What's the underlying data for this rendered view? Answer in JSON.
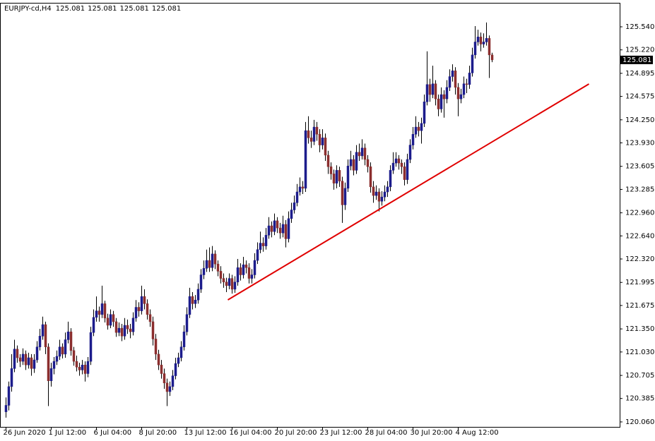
{
  "chart_data": {
    "type": "candlestick",
    "symbol": "EURJPY-cd,H4",
    "header_values": [
      125.081,
      125.081,
      125.081,
      125.081
    ],
    "last_price": 125.081,
    "up_color": "#1c1c8c",
    "down_color": "#8b2e2e",
    "wick_color": "#000000",
    "ylim": [
      119.991,
      125.863
    ],
    "yticks": [
      {
        "value": 125.54,
        "label": "125.540"
      },
      {
        "value": 125.22,
        "label": "125.220"
      },
      124.895,
      124.575,
      {
        "value": 124.25,
        "label": "124.250"
      },
      {
        "value": 123.93,
        "label": "123.930"
      },
      123.605,
      123.285,
      {
        "value": 122.96,
        "label": "122.960"
      },
      {
        "value": 122.64,
        "label": "122.640"
      },
      {
        "value": 122.32,
        "label": "122.320"
      },
      121.995,
      121.675,
      {
        "value": 121.35,
        "label": "121.350"
      },
      {
        "value": 121.03,
        "label": "121.030"
      },
      120.705,
      120.385,
      {
        "value": 120.06,
        "label": "120.060"
      }
    ],
    "x": [
      "26 Jun 2020",
      null,
      null,
      null,
      null,
      null,
      null,
      null,
      null,
      null,
      null,
      null,
      null,
      null,
      null,
      null,
      "1 Jul 12:00",
      null,
      null,
      null,
      null,
      null,
      null,
      null,
      null,
      null,
      null,
      null,
      null,
      null,
      null,
      null,
      "6 Jul 04:00",
      null,
      null,
      null,
      null,
      null,
      null,
      null,
      null,
      null,
      null,
      null,
      null,
      null,
      null,
      null,
      "8 Jul 20:00",
      null,
      null,
      null,
      null,
      null,
      null,
      null,
      null,
      null,
      null,
      null,
      null,
      null,
      null,
      null,
      "13 Jul 12:00",
      null,
      null,
      null,
      null,
      null,
      null,
      null,
      null,
      null,
      null,
      null,
      null,
      null,
      null,
      null,
      "16 Jul 04:00",
      null,
      null,
      null,
      null,
      null,
      null,
      null,
      null,
      null,
      null,
      null,
      null,
      null,
      null,
      null,
      "20 Jul 20:00",
      null,
      null,
      null,
      null,
      null,
      null,
      null,
      null,
      null,
      null,
      null,
      null,
      null,
      null,
      null,
      "23 Jul 12:00",
      null,
      null,
      null,
      null,
      null,
      null,
      null,
      null,
      null,
      null,
      null,
      null,
      null,
      null,
      null,
      "28 Jul 04:00",
      null,
      null,
      null,
      null,
      null,
      null,
      null,
      null,
      null,
      null,
      null,
      null,
      null,
      null,
      null,
      "30 Jul 20:00",
      null,
      null,
      null,
      null,
      null,
      null,
      null,
      null,
      null,
      null,
      null,
      null,
      null,
      null,
      null,
      "4 Aug 12:00",
      null,
      null,
      null,
      null,
      null,
      null,
      null,
      null,
      null,
      null,
      null,
      null
    ],
    "ohlc": [
      [
        120.2,
        120.4,
        120.12,
        120.29
      ],
      [
        120.29,
        120.62,
        120.22,
        120.55
      ],
      [
        120.55,
        121.0,
        120.48,
        120.8
      ],
      [
        120.8,
        121.2,
        120.75,
        121.07
      ],
      [
        121.07,
        121.12,
        120.88,
        120.95
      ],
      [
        120.95,
        121.0,
        120.82,
        120.9
      ],
      [
        120.9,
        121.08,
        120.85,
        121.0
      ],
      [
        121.0,
        121.05,
        120.78,
        120.85
      ],
      [
        120.85,
        121.02,
        120.8,
        120.95
      ],
      [
        120.95,
        121.0,
        120.7,
        120.8
      ],
      [
        120.8,
        121.0,
        120.74,
        120.92
      ],
      [
        120.92,
        121.18,
        120.88,
        121.1
      ],
      [
        121.1,
        121.35,
        121.05,
        121.25
      ],
      [
        121.25,
        121.52,
        121.2,
        121.41
      ],
      [
        121.41,
        121.45,
        121.0,
        121.1
      ],
      [
        121.1,
        121.15,
        120.28,
        120.63
      ],
      [
        120.63,
        120.88,
        120.55,
        120.8
      ],
      [
        120.8,
        120.96,
        120.72,
        120.9
      ],
      [
        120.9,
        121.05,
        120.85,
        120.97
      ],
      [
        120.97,
        121.2,
        120.92,
        121.1
      ],
      [
        121.1,
        121.15,
        120.94,
        121.0
      ],
      [
        121.0,
        121.3,
        120.95,
        121.2
      ],
      [
        121.2,
        121.45,
        121.15,
        121.31
      ],
      [
        121.31,
        121.36,
        120.98,
        121.05
      ],
      [
        121.05,
        121.1,
        120.84,
        120.9
      ],
      [
        120.9,
        120.98,
        120.76,
        120.82
      ],
      [
        120.82,
        120.88,
        120.7,
        120.78
      ],
      [
        120.78,
        120.92,
        120.72,
        120.85
      ],
      [
        120.85,
        120.9,
        120.62,
        120.73
      ],
      [
        120.73,
        120.96,
        120.68,
        120.9
      ],
      [
        120.9,
        121.38,
        120.85,
        121.3
      ],
      [
        121.3,
        121.62,
        121.25,
        121.51
      ],
      [
        121.51,
        121.8,
        121.45,
        121.6
      ],
      [
        121.6,
        121.66,
        121.45,
        121.55
      ],
      [
        121.55,
        121.95,
        121.5,
        121.7
      ],
      [
        121.7,
        121.74,
        121.44,
        121.5
      ],
      [
        121.5,
        121.56,
        121.34,
        121.4
      ],
      [
        121.4,
        121.62,
        121.36,
        121.55
      ],
      [
        121.55,
        121.6,
        121.38,
        121.45
      ],
      [
        121.45,
        121.5,
        121.24,
        121.3
      ],
      [
        121.3,
        121.44,
        121.25,
        121.36
      ],
      [
        121.36,
        121.42,
        121.18,
        121.25
      ],
      [
        121.25,
        121.5,
        121.2,
        121.4
      ],
      [
        121.4,
        121.48,
        121.28,
        121.35
      ],
      [
        121.35,
        121.42,
        121.22,
        121.31
      ],
      [
        121.31,
        121.58,
        121.26,
        121.5
      ],
      [
        121.5,
        121.75,
        121.45,
        121.65
      ],
      [
        121.65,
        121.72,
        121.52,
        121.6
      ],
      [
        121.6,
        121.95,
        121.55,
        121.8
      ],
      [
        121.8,
        121.9,
        121.62,
        121.7
      ],
      [
        121.7,
        121.76,
        121.48,
        121.55
      ],
      [
        121.55,
        121.62,
        121.38,
        121.45
      ],
      [
        121.45,
        121.52,
        121.12,
        121.21
      ],
      [
        121.21,
        121.28,
        120.92,
        121.0
      ],
      [
        121.0,
        121.06,
        120.78,
        120.85
      ],
      [
        120.85,
        120.92,
        120.66,
        120.73
      ],
      [
        120.73,
        120.8,
        120.52,
        120.6
      ],
      [
        120.6,
        120.66,
        120.28,
        120.48
      ],
      [
        120.48,
        120.62,
        120.42,
        120.55
      ],
      [
        120.55,
        120.78,
        120.5,
        120.7
      ],
      [
        120.7,
        120.95,
        120.65,
        120.87
      ],
      [
        120.87,
        121.02,
        120.82,
        120.95
      ],
      [
        120.95,
        121.18,
        120.9,
        121.1
      ],
      [
        121.1,
        121.4,
        121.05,
        121.31
      ],
      [
        121.31,
        121.65,
        121.26,
        121.55
      ],
      [
        121.55,
        121.92,
        121.5,
        121.8
      ],
      [
        121.8,
        121.86,
        121.62,
        121.7
      ],
      [
        121.7,
        121.82,
        121.64,
        121.75
      ],
      [
        121.75,
        121.98,
        121.7,
        121.9
      ],
      [
        121.9,
        122.18,
        121.85,
        122.1
      ],
      [
        122.1,
        122.3,
        122.04,
        122.19
      ],
      [
        122.19,
        122.45,
        122.14,
        122.3
      ],
      [
        122.3,
        122.48,
        122.14,
        122.2
      ],
      [
        122.2,
        122.5,
        122.15,
        122.39
      ],
      [
        122.39,
        122.44,
        122.18,
        122.25
      ],
      [
        122.25,
        122.3,
        122.08,
        122.15
      ],
      [
        122.15,
        122.22,
        121.98,
        122.05
      ],
      [
        122.05,
        122.12,
        121.92,
        122.0
      ],
      [
        122.0,
        122.06,
        121.86,
        121.95
      ],
      [
        121.95,
        122.12,
        121.9,
        122.05
      ],
      [
        122.05,
        122.1,
        121.84,
        121.9
      ],
      [
        121.9,
        122.08,
        121.85,
        122.0
      ],
      [
        122.0,
        122.32,
        121.95,
        122.2
      ],
      [
        122.2,
        122.26,
        122.02,
        122.1
      ],
      [
        122.1,
        122.35,
        122.05,
        122.24
      ],
      [
        122.24,
        122.3,
        122.12,
        122.2
      ],
      [
        122.2,
        122.26,
        121.98,
        122.05
      ],
      [
        122.05,
        122.18,
        121.98,
        122.1
      ],
      [
        122.1,
        122.4,
        122.05,
        122.3
      ],
      [
        122.3,
        122.55,
        122.25,
        122.45
      ],
      [
        122.45,
        122.7,
        122.4,
        122.54
      ],
      [
        122.54,
        122.62,
        122.42,
        122.5
      ],
      [
        122.5,
        122.75,
        122.45,
        122.65
      ],
      [
        122.65,
        122.9,
        122.6,
        122.78
      ],
      [
        122.78,
        122.84,
        122.62,
        122.7
      ],
      [
        122.7,
        122.95,
        122.65,
        122.85
      ],
      [
        122.85,
        122.9,
        122.68,
        122.75
      ],
      [
        122.75,
        122.82,
        122.6,
        122.68
      ],
      [
        122.68,
        122.92,
        122.62,
        122.8
      ],
      [
        122.8,
        122.86,
        122.48,
        122.6
      ],
      [
        122.6,
        122.98,
        122.55,
        122.88
      ],
      [
        122.88,
        123.1,
        122.82,
        123.0
      ],
      [
        123.0,
        123.2,
        122.95,
        123.1
      ],
      [
        123.1,
        123.36,
        123.05,
        123.25
      ],
      [
        123.25,
        123.45,
        123.2,
        123.32
      ],
      [
        123.32,
        123.4,
        123.22,
        123.3
      ],
      [
        123.3,
        124.22,
        123.25,
        124.1
      ],
      [
        124.1,
        124.3,
        123.92,
        124.0
      ],
      [
        124.0,
        124.1,
        123.86,
        123.95
      ],
      [
        123.95,
        124.25,
        123.9,
        124.15
      ],
      [
        124.15,
        124.22,
        123.96,
        124.05
      ],
      [
        124.05,
        124.12,
        123.8,
        123.9
      ],
      [
        123.9,
        124.12,
        123.84,
        124.0
      ],
      [
        124.0,
        124.06,
        123.68,
        123.76
      ],
      [
        123.76,
        123.82,
        123.5,
        123.6
      ],
      [
        123.6,
        123.66,
        123.42,
        123.5
      ],
      [
        123.5,
        123.56,
        123.28,
        123.37
      ],
      [
        123.37,
        123.62,
        123.3,
        123.55
      ],
      [
        123.55,
        123.6,
        123.32,
        123.4
      ],
      [
        123.4,
        123.46,
        122.82,
        123.07
      ],
      [
        123.07,
        123.38,
        123.0,
        123.3
      ],
      [
        123.3,
        123.7,
        123.25,
        123.61
      ],
      [
        123.61,
        123.82,
        123.55,
        123.7
      ],
      [
        123.7,
        123.76,
        123.48,
        123.55
      ],
      [
        123.55,
        123.9,
        123.5,
        123.8
      ],
      [
        123.8,
        123.92,
        123.68,
        123.75
      ],
      [
        123.75,
        123.98,
        123.7,
        123.86
      ],
      [
        123.86,
        123.92,
        123.62,
        123.7
      ],
      [
        123.7,
        123.76,
        123.52,
        123.6
      ],
      [
        123.6,
        123.66,
        123.24,
        123.32
      ],
      [
        123.32,
        123.4,
        123.1,
        123.2
      ],
      [
        123.2,
        123.34,
        123.14,
        123.25
      ],
      [
        123.25,
        123.3,
        122.98,
        123.12
      ],
      [
        123.12,
        123.26,
        123.06,
        123.18
      ],
      [
        123.18,
        123.34,
        123.12,
        123.25
      ],
      [
        123.25,
        123.4,
        123.18,
        123.32
      ],
      [
        123.32,
        123.62,
        123.26,
        123.55
      ],
      [
        123.55,
        123.8,
        123.5,
        123.65
      ],
      [
        123.65,
        123.8,
        123.6,
        123.71
      ],
      [
        123.71,
        123.76,
        123.56,
        123.65
      ],
      [
        123.65,
        123.7,
        123.5,
        123.6
      ],
      [
        123.6,
        123.66,
        123.34,
        123.42
      ],
      [
        123.42,
        123.78,
        123.36,
        123.7
      ],
      [
        123.7,
        123.98,
        123.65,
        123.9
      ],
      [
        123.9,
        124.15,
        123.84,
        124.05
      ],
      [
        124.05,
        124.3,
        124.0,
        124.15
      ],
      [
        124.15,
        124.22,
        124.02,
        124.1
      ],
      [
        124.1,
        124.28,
        123.92,
        124.2
      ],
      [
        124.2,
        124.6,
        124.15,
        124.5
      ],
      [
        124.5,
        125.2,
        124.45,
        124.74
      ],
      [
        124.74,
        124.82,
        124.5,
        124.6
      ],
      [
        124.6,
        125.0,
        124.55,
        124.75
      ],
      [
        124.75,
        124.8,
        124.45,
        124.54
      ],
      [
        124.54,
        124.6,
        124.3,
        124.4
      ],
      [
        124.4,
        124.7,
        124.35,
        124.6
      ],
      [
        124.6,
        124.66,
        124.28,
        124.54
      ],
      [
        124.54,
        124.8,
        124.48,
        124.7
      ],
      [
        124.7,
        124.95,
        124.65,
        124.85
      ],
      [
        124.85,
        125.02,
        124.78,
        124.93
      ],
      [
        124.93,
        124.98,
        124.6,
        124.7
      ],
      [
        124.7,
        124.76,
        124.3,
        124.54
      ],
      [
        124.54,
        124.68,
        124.48,
        124.6
      ],
      [
        124.6,
        124.85,
        124.55,
        124.75
      ],
      [
        124.75,
        124.82,
        124.62,
        124.74
      ],
      [
        124.74,
        125.0,
        124.68,
        124.9
      ],
      [
        124.9,
        125.25,
        124.85,
        125.15
      ],
      [
        125.15,
        125.55,
        125.1,
        125.33
      ],
      [
        125.33,
        125.5,
        125.28,
        125.4
      ],
      [
        125.4,
        125.46,
        125.2,
        125.3
      ],
      [
        125.3,
        125.45,
        125.25,
        125.33
      ],
      [
        125.33,
        125.6,
        125.28,
        125.38
      ],
      [
        125.38,
        125.42,
        124.83,
        125.15
      ],
      [
        125.15,
        125.18,
        125.05,
        125.081
      ]
    ],
    "trendline": {
      "x": [
        78.5,
        206.25
      ],
      "y": [
        121.753,
        124.747
      ],
      "color": "#e00000"
    }
  }
}
